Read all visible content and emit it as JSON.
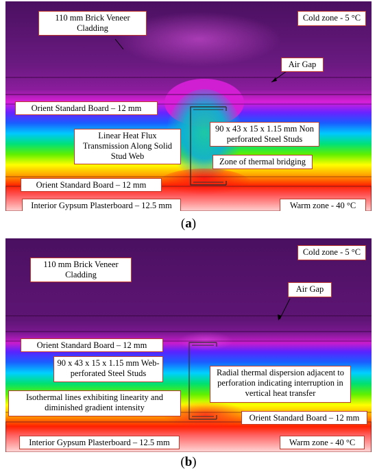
{
  "panel_a": {
    "labels": {
      "cladding": "110 mm Brick Veneer Cladding",
      "cold_zone": "Cold zone - 5 °C",
      "air_gap": "Air Gap",
      "osb_top": "Orient Standard Board – 12 mm",
      "heat_flux": "Linear Heat Flux Transmission Along Solid Stud Web",
      "stud": "90 x 43 x 15 x 1.15 mm Non perforated Steel Studs",
      "bridging": "Zone of thermal bridging",
      "osb_bottom": "Orient Standard Board – 12 mm",
      "gypsum": "Interior Gypsum Plasterboard – 12.5 mm",
      "warm_zone": "Warm zone - 40 °C"
    },
    "caption": {
      "open": "(",
      "letter": "a",
      "close": ")"
    }
  },
  "panel_b": {
    "labels": {
      "cold_zone": "Cold zone - 5 °C",
      "cladding": "110 mm Brick Veneer Cladding",
      "air_gap": "Air Gap",
      "osb_top": "Orient Standard Board – 12 mm",
      "stud": "90 x 43 x 15 x 1.15 mm Web-perforated Steel Studs",
      "radial": "Radial thermal dispersion adjacent to perforation indicating interruption in vertical heat transfer",
      "isotherm": "Isothermal lines exhibiting linearity and diminished gradient intensity",
      "osb_bottom": "Orient Standard Board – 12 mm",
      "gypsum": "Interior Gypsum Plasterboard – 12.5 mm",
      "warm_zone": "Warm zone - 40 °C"
    },
    "caption": {
      "open": "(",
      "letter": "b",
      "close": ")"
    }
  },
  "colors": {
    "label_border": "#c0392b",
    "cold": "#4a1060",
    "warm": "#ff0000"
  }
}
